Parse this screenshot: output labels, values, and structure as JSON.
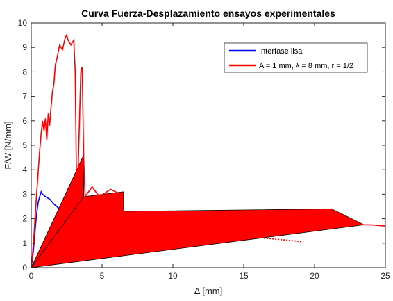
{
  "chart_data": {
    "type": "line",
    "title": "Curva Fuerza-Desplazamiento ensayos experimentales",
    "xlabel": "Δ [mm]",
    "ylabel": "F/W [N/mm]",
    "xlim": [
      0,
      25
    ],
    "ylim": [
      0,
      10
    ],
    "xticks": [
      "0",
      "5",
      "10",
      "15",
      "20",
      "25"
    ],
    "yticks": [
      "0",
      "1",
      "2",
      "3",
      "4",
      "5",
      "6",
      "7",
      "8",
      "9",
      "10"
    ],
    "grid": false,
    "legend_position": "top-right",
    "series": [
      {
        "name": "Interfase lisa",
        "color": "#0000ff",
        "curve": [
          [
            0,
            0
          ],
          [
            0.1,
            0.4
          ],
          [
            0.2,
            1.0
          ],
          [
            0.3,
            1.7
          ],
          [
            0.4,
            2.3
          ],
          [
            0.5,
            2.7
          ],
          [
            0.6,
            2.9
          ],
          [
            0.7,
            3.1
          ],
          [
            0.8,
            3.0
          ],
          [
            1.0,
            2.9
          ],
          [
            1.3,
            2.8
          ],
          [
            1.6,
            2.6
          ],
          [
            2.0,
            2.4
          ],
          [
            2.6,
            2.2
          ],
          [
            3.3,
            2.1
          ],
          [
            4.3,
            1.9
          ],
          [
            5.5,
            1.75
          ],
          [
            6.5,
            1.65
          ],
          [
            7.5,
            1.55
          ],
          [
            8.5,
            1.45
          ],
          [
            9.5,
            1.35
          ],
          [
            10.5,
            1.28
          ],
          [
            11.5,
            1.15
          ],
          [
            12.0,
            1.1
          ],
          [
            12.5,
            1.0
          ],
          [
            12.8,
            0.95
          ]
        ],
        "envelope": [
          [
            0,
            0
          ],
          [
            2.6,
            2.2
          ],
          [
            11.5,
            1.2
          ],
          [
            0,
            0
          ],
          [
            8.5,
            1.1
          ],
          [
            0,
            0
          ]
        ]
      },
      {
        "name": "A = 1 mm, λ = 8 mm, r = 1/2",
        "color": "#ff0000",
        "curve": [
          [
            0,
            0
          ],
          [
            0.1,
            0.6
          ],
          [
            0.2,
            1.4
          ],
          [
            0.3,
            2.3
          ],
          [
            0.4,
            3.2
          ],
          [
            0.5,
            4.0
          ],
          [
            0.6,
            4.8
          ],
          [
            0.7,
            5.5
          ],
          [
            0.8,
            6.0
          ],
          [
            0.9,
            5.6
          ],
          [
            1.0,
            6.1
          ],
          [
            1.1,
            5.2
          ],
          [
            1.2,
            6.3
          ],
          [
            1.3,
            5.8
          ],
          [
            1.4,
            6.6
          ],
          [
            1.5,
            7.2
          ],
          [
            1.6,
            7.5
          ],
          [
            1.7,
            8.3
          ],
          [
            1.8,
            8.5
          ],
          [
            1.9,
            8.8
          ],
          [
            2.0,
            9.1
          ],
          [
            2.2,
            8.9
          ],
          [
            2.4,
            9.4
          ],
          [
            2.5,
            9.5
          ],
          [
            2.6,
            9.3
          ],
          [
            2.8,
            9.1
          ],
          [
            3.0,
            9.3
          ],
          [
            3.1,
            8.1
          ],
          [
            3.2,
            3.2
          ],
          [
            3.3,
            3.8
          ],
          [
            3.5,
            8.0
          ],
          [
            3.6,
            8.2
          ],
          [
            3.7,
            4.5
          ],
          [
            3.8,
            2.9
          ],
          [
            4.3,
            3.3
          ],
          [
            4.8,
            2.9
          ],
          [
            5.6,
            3.2
          ],
          [
            6.3,
            3.0
          ],
          [
            6.5,
            2.3
          ],
          [
            7.2,
            2.1
          ],
          [
            8.0,
            2.3
          ],
          [
            8.7,
            1.9
          ],
          [
            9.5,
            2.1
          ],
          [
            10.5,
            1.9
          ],
          [
            11.5,
            2.0
          ],
          [
            12.5,
            1.95
          ],
          [
            13.5,
            2.0
          ],
          [
            14.5,
            2.1
          ],
          [
            15.5,
            2.05
          ],
          [
            16.5,
            1.9
          ],
          [
            17.5,
            2.1
          ],
          [
            18.5,
            2.2
          ],
          [
            19.5,
            2.25
          ],
          [
            20.5,
            2.2
          ],
          [
            21.2,
            2.4
          ],
          [
            21.5,
            2.1
          ],
          [
            22.2,
            1.9
          ],
          [
            23.0,
            1.8
          ],
          [
            23.5,
            1.75
          ],
          [
            24.0,
            1.75
          ],
          [
            25.0,
            1.7
          ]
        ],
        "envelope": [
          [
            0,
            0
          ],
          [
            3.7,
            4.6
          ],
          [
            3.7,
            2.9
          ],
          [
            6.5,
            3.1
          ],
          [
            6.5,
            2.3
          ],
          [
            21.2,
            2.4
          ],
          [
            23.5,
            1.75
          ],
          [
            0,
            0
          ],
          [
            3.7,
            2.9
          ],
          [
            0,
            0
          ]
        ]
      },
      {
        "name": "",
        "color": "#ff0000",
        "curve": [
          [
            14.5,
            1.4
          ],
          [
            15.5,
            1.3
          ],
          [
            16.5,
            1.2
          ],
          [
            17.5,
            1.15
          ],
          [
            18.5,
            1.1
          ],
          [
            19.2,
            1.05
          ]
        ],
        "envelope": []
      }
    ]
  }
}
